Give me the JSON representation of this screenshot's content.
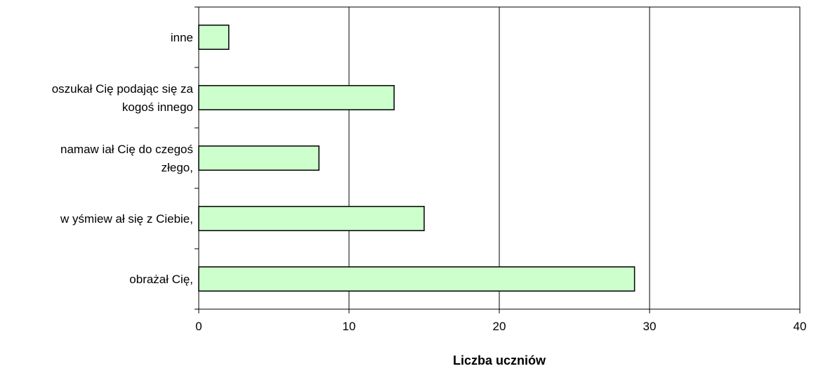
{
  "chart_data": {
    "type": "bar",
    "orientation": "horizontal",
    "categories": [
      [
        "inne"
      ],
      [
        "oszukał Cię podając się za",
        "kogoś innego"
      ],
      [
        "namaw iał Cię do czegoś",
        "złego,"
      ],
      [
        "w yśmiew ał się z Ciebie,"
      ],
      [
        "obrażał Cię,"
      ]
    ],
    "values": [
      2,
      13,
      8,
      15,
      29
    ],
    "xlabel": "Liczba uczniów",
    "ylabel": "",
    "xlim": [
      0,
      40
    ],
    "xticks": [
      "0",
      "10",
      "20",
      "30",
      "40"
    ],
    "grid": "vertical",
    "legend": "none",
    "colors": {
      "bar_fill": "#ccffcc",
      "bar_stroke": "#000000",
      "grid": "#000000",
      "axis": "#000000"
    }
  }
}
